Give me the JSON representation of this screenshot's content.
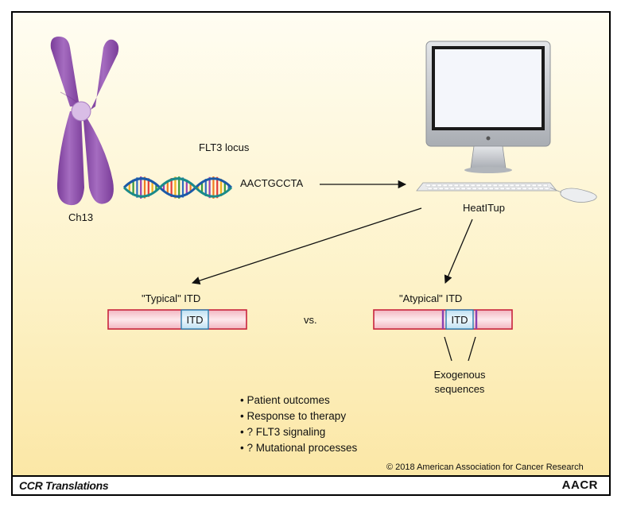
{
  "labels": {
    "chromosome": "Ch13",
    "locus": "FLT3 locus",
    "sequence": "AACTGCCTA",
    "software": "HeatITup",
    "typical": "\"Typical\" ITD",
    "atypical": "\"Atypical\" ITD",
    "itd_box": "ITD",
    "vs": "vs.",
    "exogenous_line1": "Exogenous",
    "exogenous_line2": "sequences"
  },
  "bullets": [
    "Patient outcomes",
    "Response to therapy",
    "? FLT3 signaling",
    "? Mutational processes"
  ],
  "copyright": "© 2018 American Association for Cancer Research",
  "footer": {
    "left": "CCR Translations",
    "right": "AACR"
  },
  "colors": {
    "chromosome": "#9b5fb5",
    "centromere": "#d4b3e2",
    "bar_red": "#c8243c",
    "bar_fill": "#f5c3cc",
    "itd_fill": "#cfe8f5",
    "itd_stroke": "#2a7fb0",
    "exogenous_marker": "#8a3fb0",
    "monitor_silver": "#c9ccd0",
    "screen": "#f4f6fb"
  },
  "icons": [
    "chromosome-icon",
    "dna-helix-icon",
    "computer-monitor-icon",
    "keyboard-icon",
    "mouse-icon"
  ]
}
